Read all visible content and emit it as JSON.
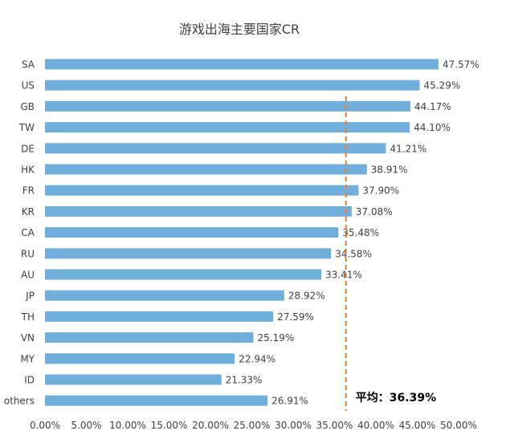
{
  "chart_data": {
    "type": "bar",
    "orientation": "horizontal",
    "title": "游戏出海主要国家CR",
    "categories": [
      "SA",
      "US",
      "GB",
      "TW",
      "DE",
      "HK",
      "FR",
      "KR",
      "CA",
      "RU",
      "AU",
      "JP",
      "TH",
      "VN",
      "MY",
      "ID",
      "others"
    ],
    "values": [
      47.57,
      45.29,
      44.17,
      44.1,
      41.21,
      38.91,
      37.9,
      37.08,
      35.48,
      34.58,
      33.41,
      28.92,
      27.59,
      25.19,
      22.94,
      21.33,
      26.91
    ],
    "value_labels": [
      "47.57%",
      "45.29%",
      "44.17%",
      "44.10%",
      "41.21%",
      "38.91%",
      "37.90%",
      "37.08%",
      "35.48%",
      "34.58%",
      "33.41%",
      "28.92%",
      "27.59%",
      "25.19%",
      "22.94%",
      "21.33%",
      "26.91%"
    ],
    "xlim": [
      0,
      50
    ],
    "x_ticks": [
      0,
      5,
      10,
      15,
      20,
      25,
      30,
      35,
      40,
      45,
      50
    ],
    "x_tick_labels": [
      "0.00%",
      "5.00%",
      "10.00%",
      "15.00%",
      "20.00%",
      "25.00%",
      "30.00%",
      "35.00%",
      "40.00%",
      "45.00%",
      "50.00%"
    ],
    "grid": false,
    "average": {
      "value": 36.39,
      "label": "平均：36.39%"
    },
    "colors": {
      "bar": "#70aedc",
      "average_line": "#ed7d31"
    }
  }
}
